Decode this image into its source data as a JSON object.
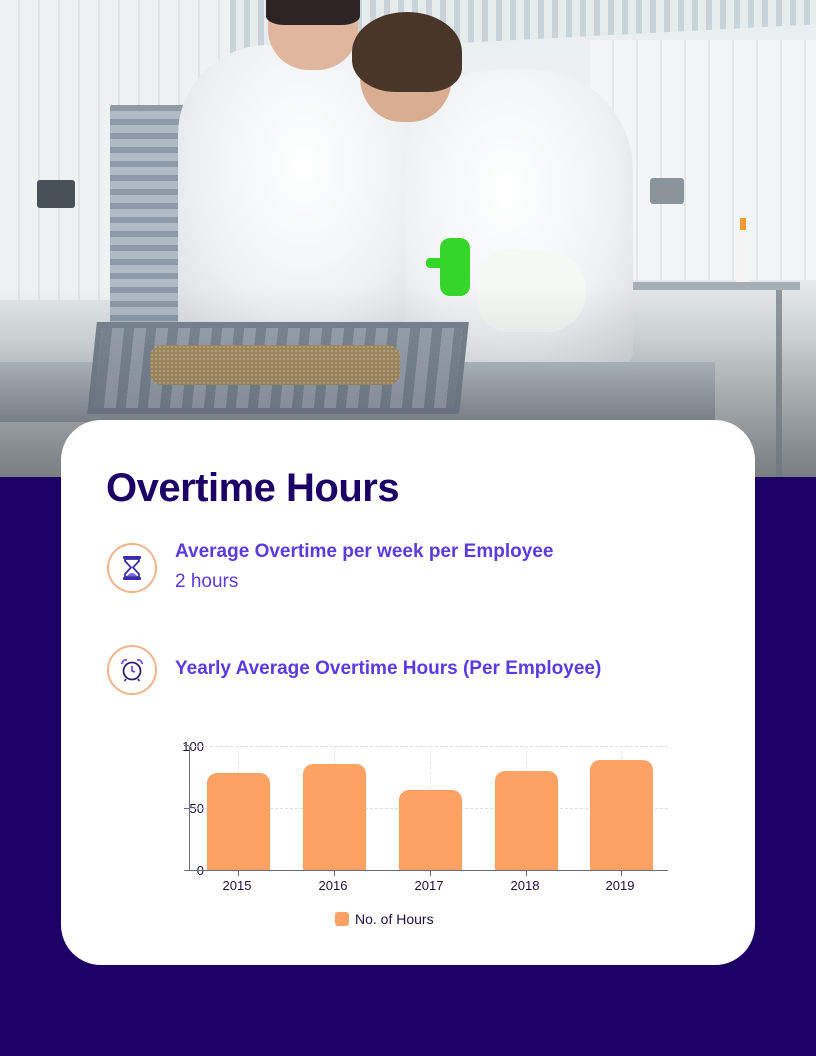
{
  "page": {
    "background_color": "#1c0066",
    "card_color": "#ffffff",
    "accent_color": "#5a3be0",
    "title_color": "#1c0066"
  },
  "photo": {
    "description": "Two people in white lab coats examining a grey crate of grain on a steel table; one holds a green-topped spray bottle"
  },
  "card": {
    "title": "Overtime Hours",
    "stats": [
      {
        "icon": "hourglass-icon",
        "label": "Average Overtime per week per Employee",
        "value": "2 hours"
      },
      {
        "icon": "alarm-clock-icon",
        "label": "Yearly Average Overtime Hours (Per Employee)"
      }
    ]
  },
  "chart_data": {
    "type": "bar",
    "title": "Yearly Average Overtime Hours (Per Employee)",
    "categories": [
      "2015",
      "2016",
      "2017",
      "2018",
      "2019"
    ],
    "series": [
      {
        "name": "No. of Hours",
        "color": "#fda264",
        "values": [
          78,
          85,
          64,
          79,
          88
        ]
      }
    ],
    "xlabel": "",
    "ylabel": "",
    "ylim": [
      0,
      100
    ],
    "yticks": [
      "0",
      "50",
      "100"
    ],
    "grid": true,
    "legend_position": "bottom"
  }
}
